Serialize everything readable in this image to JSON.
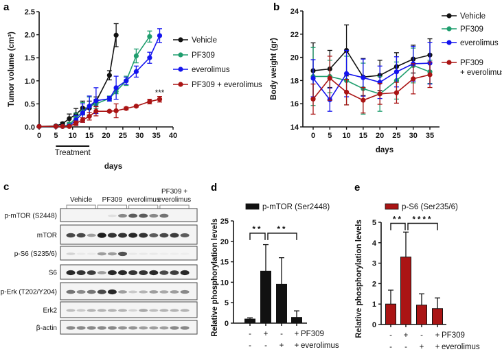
{
  "panels": {
    "a": "a",
    "b": "b",
    "c": "c",
    "d": "d",
    "e": "e"
  },
  "colors": {
    "vehicle": "#111111",
    "pf309": "#1f9e6e",
    "everolimus": "#1414ee",
    "combo": "#aa1414"
  },
  "chart_data": [
    {
      "id": "a",
      "type": "line",
      "xlabel": "days",
      "ylabel": "Tumor volume (cm³)",
      "xlim": [
        0,
        40
      ],
      "ylim": [
        0,
        2.5
      ],
      "xticks": [
        "0",
        "5",
        "10",
        "15",
        "20",
        "25",
        "30",
        "35",
        "40"
      ],
      "yticks": [
        "0.0",
        "0.5",
        "1.0",
        "1.5",
        "2.0",
        "2.5"
      ],
      "treatment": {
        "label": "Treatment",
        "start": 5,
        "end": 15
      },
      "annotation": {
        "text": "***",
        "x": 36,
        "y": 0.8
      },
      "series": [
        {
          "name": "Vehicle",
          "color_key": "vehicle",
          "x": [
            0,
            5,
            7,
            9,
            11,
            13,
            15,
            17,
            21,
            23
          ],
          "y": [
            0.01,
            0.02,
            0.07,
            0.18,
            0.27,
            0.41,
            0.41,
            0.55,
            1.12,
            1.99
          ],
          "err": [
            0.01,
            0.02,
            0.03,
            0.1,
            0.13,
            0.15,
            0.15,
            0.1,
            0.1,
            0.25
          ]
        },
        {
          "name": "PF309",
          "color_key": "pf309",
          "x": [
            0,
            5,
            7,
            9,
            11,
            13,
            15,
            17,
            21,
            23,
            26,
            29,
            33
          ],
          "y": [
            0.01,
            0.01,
            0.01,
            0.05,
            0.2,
            0.33,
            0.45,
            0.5,
            0.62,
            0.77,
            1.0,
            1.54,
            1.96
          ],
          "err": [
            0,
            0,
            0.01,
            0.05,
            0.1,
            0.2,
            0.2,
            0.1,
            0.05,
            0.05,
            0.1,
            0.15,
            0.12
          ]
        },
        {
          "name": "everolimus",
          "color_key": "everolimus",
          "x": [
            0,
            5,
            7,
            9,
            11,
            13,
            15,
            17,
            21,
            23,
            26,
            29,
            33,
            36
          ],
          "y": [
            0.01,
            0.01,
            0.01,
            0.02,
            0.15,
            0.3,
            0.45,
            0.57,
            0.61,
            0.85,
            1.0,
            1.2,
            1.5,
            1.98
          ],
          "err": [
            0,
            0,
            0.01,
            0.03,
            0.1,
            0.2,
            0.22,
            0.28,
            0.05,
            0.25,
            0.08,
            0.12,
            0.12,
            0.15
          ]
        },
        {
          "name": "PF309 + everolimus",
          "color_key": "combo",
          "x": [
            0,
            5,
            7,
            9,
            11,
            13,
            15,
            17,
            21,
            23,
            26,
            29,
            33,
            36
          ],
          "y": [
            0.01,
            0.01,
            0.01,
            0.01,
            0.08,
            0.15,
            0.23,
            0.34,
            0.34,
            0.35,
            0.4,
            0.45,
            0.55,
            0.6
          ],
          "err": [
            0,
            0,
            0,
            0.02,
            0.05,
            0.05,
            0.08,
            0.1,
            0.02,
            0.15,
            0.03,
            0.02,
            0.05,
            0.06
          ]
        }
      ],
      "legend": "right"
    },
    {
      "id": "b",
      "type": "line",
      "xlabel": "days",
      "ylabel": "Body weight (gr)",
      "xlim": [
        0,
        35
      ],
      "ylim": [
        14,
        24
      ],
      "xticks": [
        "0",
        "5",
        "10",
        "15",
        "20",
        "25",
        "30",
        "35"
      ],
      "yticks": [
        "14",
        "16",
        "18",
        "20",
        "22",
        "24"
      ],
      "series": [
        {
          "name": "Vehicle",
          "color_key": "vehicle",
          "x": [
            0,
            5,
            10,
            15,
            20,
            25,
            30,
            35
          ],
          "y": [
            18.85,
            19.0,
            20.6,
            18.3,
            18.45,
            19.2,
            19.85,
            20.2
          ],
          "err": [
            2.4,
            1.6,
            2.2,
            1.6,
            1.3,
            1.2,
            1.2,
            1.4
          ]
        },
        {
          "name": "PF309",
          "color_key": "pf309",
          "x": [
            0,
            5,
            10,
            15,
            20,
            25,
            30,
            35
          ],
          "y": [
            18.35,
            18.35,
            18.0,
            17.3,
            16.85,
            18.0,
            19.3,
            18.75
          ],
          "err": [
            2.5,
            1.4,
            2.1,
            2.2,
            1.5,
            1.6,
            1.5,
            1.0
          ]
        },
        {
          "name": "everolimus",
          "color_key": "everolimus",
          "x": [
            0,
            5,
            10,
            15,
            20,
            25,
            30,
            35
          ],
          "y": [
            18.2,
            16.35,
            18.6,
            18.25,
            17.85,
            18.75,
            19.45,
            19.5
          ],
          "err": [
            1.6,
            1.0,
            2.0,
            1.6,
            1.4,
            1.3,
            1.5,
            1.8
          ]
        },
        {
          "name": "PF309",
          "name2": "+ everolimus",
          "color_key": "combo",
          "x": [
            0,
            5,
            10,
            15,
            20,
            25,
            30,
            35
          ],
          "y": [
            16.4,
            18.2,
            17.0,
            16.3,
            16.85,
            16.95,
            18.15,
            18.5
          ],
          "err": [
            1.3,
            1.9,
            1.1,
            1.1,
            0.9,
            0.9,
            1.3,
            1.1
          ]
        }
      ],
      "legend": "right"
    },
    {
      "id": "c",
      "type": "table",
      "groups": [
        {
          "label": "Vehicle"
        },
        {
          "label": "PF309"
        },
        {
          "label": "everolimus"
        },
        {
          "label": "PF309 +",
          "label2": "everolimus"
        }
      ],
      "lanes_per_group": 3,
      "rows": [
        {
          "label": "p-mTOR (S2448)",
          "intensity": [
            0,
            0,
            0,
            0,
            0.1,
            0.5,
            0.7,
            0.7,
            0.5,
            0.6,
            0,
            0
          ]
        },
        {
          "label": "mTOR",
          "intensity": [
            0.8,
            0.8,
            0.4,
            1,
            0.9,
            0.9,
            0.95,
            0.9,
            0.7,
            0.8,
            0.85,
            0.7
          ]
        },
        {
          "label": "p-S6 (S235/6)",
          "intensity": [
            0.15,
            0.05,
            0.05,
            0.4,
            0.4,
            0.75,
            0.05,
            0.05,
            0.05,
            0.03,
            0.03,
            0.03
          ]
        },
        {
          "label": "S6",
          "intensity": [
            0.95,
            0.9,
            0.85,
            0.4,
            0.95,
            0.95,
            0.9,
            0.9,
            0.95,
            0.8,
            0.85,
            0.95
          ]
        },
        {
          "label": "p-Erk (T202/Y204)",
          "intensity": [
            0.6,
            0.5,
            0.6,
            0.8,
            0.95,
            0.4,
            0.2,
            0.3,
            0.4,
            0.35,
            0.4,
            0.5
          ]
        },
        {
          "label": "Erk2",
          "intensity": [
            0.25,
            0.2,
            0.3,
            0.3,
            0.3,
            0.3,
            0.15,
            0.35,
            0.25,
            0.3,
            0.3,
            0.3
          ]
        },
        {
          "label": "β-actin",
          "intensity": [
            0.5,
            0.5,
            0.5,
            0.5,
            0.5,
            0.45,
            0.45,
            0.4,
            0.4,
            0.4,
            0.5,
            0.5
          ]
        }
      ]
    },
    {
      "id": "d",
      "type": "bar",
      "legend_label": "p-mTOR (Ser2448)",
      "color_key": "vehicle",
      "ylabel": "Relative phosphorylation levels",
      "ylim": [
        0,
        25
      ],
      "yticks": [
        "0",
        "5",
        "10",
        "15",
        "20",
        "25"
      ],
      "values": [
        1.0,
        12.7,
        9.5,
        1.4
      ],
      "err_top": [
        1.3,
        19.2,
        16.0,
        3.0
      ],
      "pf309": [
        "-",
        "+",
        "-",
        "+"
      ],
      "everolimus": [
        "-",
        "-",
        "+",
        "+"
      ],
      "pf309_label": "PF309",
      "everolimus_label": "everolimus",
      "significance": [
        {
          "from": 0,
          "to": 1,
          "text": "**"
        },
        {
          "from": 1,
          "to": 3,
          "text": "**"
        }
      ],
      "sig_level": 22
    },
    {
      "id": "e",
      "type": "bar",
      "legend_label": "p-S6 (Ser235/6)",
      "color_key": "combo",
      "ylabel": "Relative phosphorylation levels",
      "ylim": [
        0,
        5
      ],
      "yticks": [
        "0",
        "1",
        "2",
        "3",
        "4",
        "5"
      ],
      "values": [
        1.0,
        3.3,
        0.95,
        0.78
      ],
      "err_top": [
        1.68,
        4.52,
        1.5,
        1.3
      ],
      "pf309": [
        "-",
        "+",
        "-",
        "+"
      ],
      "everolimus": [
        "-",
        "-",
        "+",
        "+"
      ],
      "pf309_label": "PF309",
      "everolimus_label": "everolimus",
      "significance": [
        {
          "from": 0,
          "to": 1,
          "text": "**"
        },
        {
          "from": 1,
          "to": 3,
          "text": "****"
        }
      ],
      "sig_level": 4.95
    }
  ]
}
